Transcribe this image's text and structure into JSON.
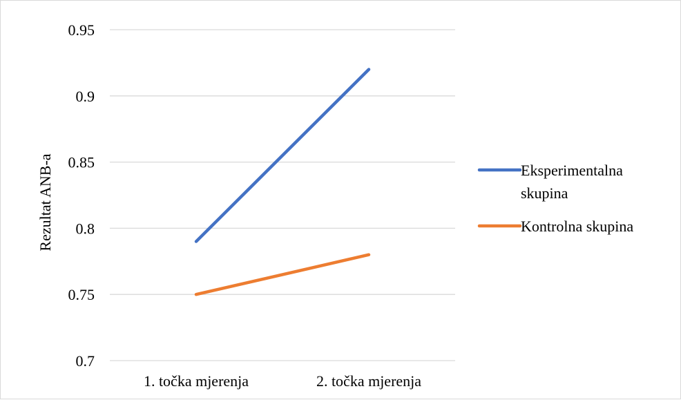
{
  "chart_data": {
    "type": "line",
    "categories": [
      "1. točka mjerenja",
      "2. točka mjerenja"
    ],
    "series": [
      {
        "name": "Eksperimentalna skupina",
        "values": [
          0.79,
          0.92
        ],
        "color": "#4472C4"
      },
      {
        "name": "Kontrolna skupina",
        "values": [
          0.75,
          0.78
        ],
        "color": "#ED7D31"
      }
    ],
    "yticks": [
      "0.7",
      "0.75",
      "0.8",
      "0.85",
      "0.9",
      "0.95"
    ],
    "ylim": [
      0.7,
      0.95
    ],
    "xlabel": "",
    "ylabel": "Rezultat ANB-a",
    "grid": true,
    "legend_position": "right",
    "legend": {
      "items": [
        {
          "lines": [
            "Eksperimentalna",
            "skupina"
          ]
        },
        {
          "lines": [
            "Kontrolna skupina"
          ]
        }
      ]
    },
    "gridline_color": "#d9d9d9"
  }
}
